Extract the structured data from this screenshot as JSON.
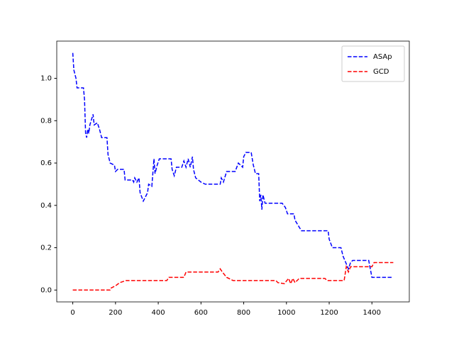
{
  "chart_data": {
    "type": "line",
    "xlim": [
      -75,
      1575
    ],
    "ylim": [
      -0.056,
      1.176
    ],
    "xticks": [
      0,
      200,
      400,
      600,
      800,
      1000,
      1200,
      1400
    ],
    "yticks": [
      {
        "value": 0,
        "label": "0.0"
      },
      {
        "value": 0.2,
        "label": "0.2"
      },
      {
        "value": 0.4,
        "label": "0.4"
      },
      {
        "value": 0.6,
        "label": "0.6"
      },
      {
        "value": 0.8,
        "label": "0.8"
      },
      {
        "value": 1.0,
        "label": "1.0"
      }
    ],
    "legend": "upper right",
    "dashed": true,
    "series": [
      {
        "name": "ASAp",
        "color": "#0000ff",
        "x": [
          0,
          5,
          15,
          20,
          50,
          55,
          60,
          65,
          70,
          75,
          80,
          95,
          100,
          115,
          125,
          135,
          160,
          165,
          175,
          195,
          200,
          210,
          240,
          245,
          280,
          285,
          290,
          300,
          310,
          315,
          330,
          340,
          350,
          355,
          370,
          380,
          385,
          395,
          405,
          460,
          465,
          475,
          485,
          510,
          520,
          530,
          540,
          550,
          560,
          565,
          575,
          600,
          620,
          690,
          695,
          705,
          720,
          760,
          775,
          795,
          800,
          810,
          835,
          845,
          855,
          870,
          875,
          880,
          885,
          890,
          900,
          980,
          995,
          1005,
          1035,
          1040,
          1070,
          1195,
          1200,
          1215,
          1255,
          1265,
          1290,
          1300,
          1310,
          1385,
          1400,
          1500
        ],
        "values": [
          1.12,
          1.04,
          1.0,
          0.955,
          0.955,
          0.9,
          0.74,
          0.72,
          0.76,
          0.74,
          0.78,
          0.83,
          0.78,
          0.79,
          0.76,
          0.72,
          0.72,
          0.64,
          0.6,
          0.59,
          0.56,
          0.57,
          0.57,
          0.52,
          0.52,
          0.51,
          0.53,
          0.51,
          0.53,
          0.46,
          0.42,
          0.44,
          0.46,
          0.5,
          0.49,
          0.62,
          0.55,
          0.59,
          0.62,
          0.62,
          0.57,
          0.54,
          0.58,
          0.58,
          0.61,
          0.58,
          0.62,
          0.58,
          0.63,
          0.57,
          0.53,
          0.51,
          0.5,
          0.5,
          0.53,
          0.51,
          0.56,
          0.56,
          0.6,
          0.58,
          0.63,
          0.65,
          0.65,
          0.59,
          0.55,
          0.55,
          0.42,
          0.45,
          0.38,
          0.45,
          0.41,
          0.41,
          0.39,
          0.36,
          0.36,
          0.33,
          0.28,
          0.28,
          0.24,
          0.2,
          0.2,
          0.16,
          0.1,
          0.13,
          0.14,
          0.14,
          0.06,
          0.06
        ]
      },
      {
        "name": "GCD",
        "color": "#ff0000",
        "x": [
          0,
          175,
          180,
          200,
          220,
          250,
          440,
          450,
          520,
          530,
          680,
          690,
          700,
          720,
          750,
          950,
          960,
          990,
          1010,
          1020,
          1030,
          1040,
          1060,
          1180,
          1190,
          1270,
          1280,
          1290,
          1300,
          1400,
          1410,
          1500
        ],
        "values": [
          0,
          0,
          0.01,
          0.02,
          0.035,
          0.045,
          0.045,
          0.06,
          0.06,
          0.085,
          0.085,
          0.1,
          0.085,
          0.06,
          0.045,
          0.045,
          0.035,
          0.03,
          0.055,
          0.03,
          0.055,
          0.035,
          0.055,
          0.055,
          0.045,
          0.045,
          0.11,
          0.085,
          0.11,
          0.11,
          0.13,
          0.13
        ]
      }
    ]
  }
}
